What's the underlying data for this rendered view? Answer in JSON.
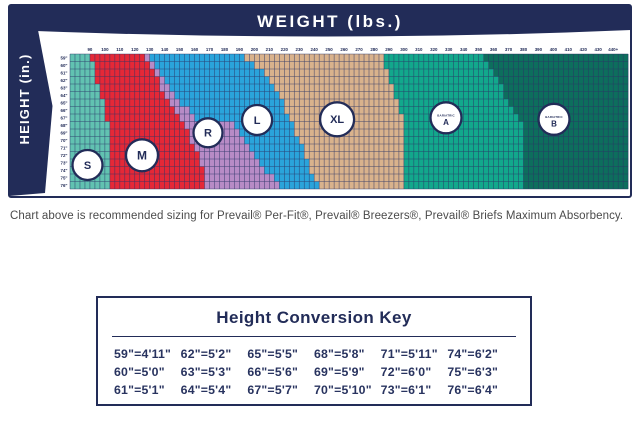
{
  "caption": "Chart above is recommended sizing for Prevail® Per-Fit®, Prevail® Breezers®, Prevail® Briefs Maximum Absorbency.",
  "colors": {
    "navy": "#222c58",
    "grid_line": "#2b3566",
    "card_background": "#ffffff",
    "caption_text": "#4b4b4b"
  },
  "chart_data": {
    "type": "heatmap",
    "title": "Recommended sizing grid by weight and height",
    "x_axis": {
      "label": "WEIGHT (lbs.)",
      "ticks": [
        "90",
        "100",
        "110",
        "120",
        "130",
        "140",
        "150",
        "160",
        "170",
        "180",
        "190",
        "200",
        "210",
        "220",
        "230",
        "240",
        "250",
        "260",
        "270",
        "280",
        "290",
        "300",
        "310",
        "320",
        "330",
        "340",
        "350",
        "360",
        "370",
        "380",
        "390",
        "400",
        "410",
        "420",
        "430",
        "440+"
      ],
      "tick_start_lb": 90,
      "tick_step_lb": 10,
      "min_lb": 76.6667,
      "max_lb": 450,
      "cell_lbs": 3.33333
    },
    "y_axis": {
      "label": "HEIGHT (in.)",
      "ticks": [
        "59\"",
        "60\"",
        "61\"",
        "62\"",
        "63\"",
        "64\"",
        "65\"",
        "66\"",
        "67\"",
        "68\"",
        "69\"",
        "70\"",
        "71\"",
        "72\"",
        "73\"",
        "74\"",
        "75\"",
        "76\""
      ]
    },
    "sizes": [
      {
        "id": "S",
        "label": "S",
        "color": "#61c2b1"
      },
      {
        "id": "M",
        "label": "M",
        "color": "#e52837"
      },
      {
        "id": "R",
        "label": "R",
        "color": "#b78bc6"
      },
      {
        "id": "L",
        "label": "L",
        "color": "#2aa4db"
      },
      {
        "id": "XL",
        "label": "XL",
        "color": "#d9b28c"
      },
      {
        "id": "A",
        "label": "BARIATRIC A",
        "color": "#12a88c"
      },
      {
        "id": "B",
        "label": "BARIATRIC B",
        "color": "#0d6e5d"
      }
    ],
    "rows": [
      {
        "h": "59\"",
        "bounds": {
          "S": 91,
          "M": 126,
          "R": 130,
          "L": 193,
          "XL": 287,
          "A": 353
        }
      },
      {
        "h": "60\"",
        "bounds": {
          "S": 94,
          "M": 129,
          "R": 133,
          "L": 200,
          "XL": 287,
          "A": 356
        }
      },
      {
        "h": "61\"",
        "bounds": {
          "S": 94,
          "M": 132,
          "R": 136,
          "L": 206,
          "XL": 290,
          "A": 359
        }
      },
      {
        "h": "62\"",
        "bounds": {
          "S": 94,
          "M": 135,
          "R": 139,
          "L": 210,
          "XL": 290,
          "A": 362
        }
      },
      {
        "h": "63\"",
        "bounds": {
          "S": 97,
          "M": 138,
          "R": 144,
          "L": 213,
          "XL": 293,
          "A": 365
        }
      },
      {
        "h": "64\"",
        "bounds": {
          "S": 97,
          "M": 141,
          "R": 147,
          "L": 216,
          "XL": 293,
          "A": 368
        }
      },
      {
        "h": "65\"",
        "bounds": {
          "S": 100,
          "M": 144,
          "R": 151,
          "L": 219,
          "XL": 297,
          "A": 371
        }
      },
      {
        "h": "66\"",
        "bounds": {
          "S": 100,
          "M": 147,
          "R": 155,
          "L": 221,
          "XL": 297,
          "A": 374
        }
      },
      {
        "h": "67\"",
        "bounds": {
          "S": 100,
          "M": 150,
          "R": 159,
          "L": 224,
          "XL": 300,
          "A": 377
        }
      },
      {
        "h": "68\"",
        "bounds": {
          "S": 102,
          "M": 153,
          "R": 187,
          "L": 226,
          "XL": 300,
          "A": 380
        }
      },
      {
        "h": "69\"",
        "bounds": {
          "S": 102,
          "M": 156,
          "R": 190,
          "L": 228,
          "XL": 300,
          "A": 381
        }
      },
      {
        "h": "70\"",
        "bounds": {
          "S": 104,
          "M": 158,
          "R": 194,
          "L": 230,
          "XL": 300,
          "A": 381
        }
      },
      {
        "h": "71\"",
        "bounds": {
          "S": 104,
          "M": 160,
          "R": 197,
          "L": 232,
          "XL": 300,
          "A": 381
        }
      },
      {
        "h": "72\"",
        "bounds": {
          "S": 104,
          "M": 162,
          "R": 200,
          "L": 234,
          "XL": 300,
          "A": 381
        }
      },
      {
        "h": "73\"",
        "bounds": {
          "S": 105,
          "M": 164,
          "R": 204,
          "L": 236,
          "XL": 300,
          "A": 381
        }
      },
      {
        "h": "74\"",
        "bounds": {
          "S": 105,
          "M": 165,
          "R": 208,
          "L": 238,
          "XL": 300,
          "A": 381
        }
      },
      {
        "h": "75\"",
        "bounds": {
          "S": 105,
          "M": 166,
          "R": 214,
          "L": 240,
          "XL": 300,
          "A": 381
        }
      },
      {
        "h": "76\"",
        "bounds": {
          "S": 105,
          "M": 166,
          "R": 218,
          "L": 242,
          "XL": 300,
          "A": 381
        }
      }
    ],
    "size_badges": [
      {
        "id": "S",
        "lines": [
          "S"
        ],
        "lb": 88.4,
        "row": 14.8,
        "r": 15,
        "font": 11
      },
      {
        "id": "M",
        "lines": [
          "M"
        ],
        "lb": 124.8,
        "row": 13.5,
        "r": 16,
        "font": 12
      },
      {
        "id": "R",
        "lines": [
          "R"
        ],
        "lb": 169,
        "row": 10.5,
        "r": 14.5,
        "font": 11
      },
      {
        "id": "L",
        "lines": [
          "L"
        ],
        "lb": 201.8,
        "row": 8.8,
        "r": 15,
        "font": 11
      },
      {
        "id": "XL",
        "lines": [
          "XL"
        ],
        "lb": 255.3,
        "row": 8.7,
        "r": 17,
        "font": 11
      },
      {
        "id": "A",
        "lines": [
          "BARIATRIC",
          "A"
        ],
        "lb": 328.2,
        "row": 8.5,
        "r": 15.5,
        "font": 8
      },
      {
        "id": "B",
        "lines": [
          "BARIATRIC",
          "B"
        ],
        "lb": 400.4,
        "row": 8.7,
        "r": 15.5,
        "font": 8
      }
    ],
    "legend_position": "in-region badges",
    "grid": true
  },
  "key": {
    "title": "Height Conversion Key",
    "columns": [
      [
        "59\"=4'11\"",
        "60\"=5'0\"",
        "61\"=5'1\""
      ],
      [
        "62\"=5'2\"",
        "63\"=5'3\"",
        "64\"=5'4\""
      ],
      [
        "65\"=5'5\"",
        "66\"=5'6\"",
        "67\"=5'7\""
      ],
      [
        "68\"=5'8\"",
        "69\"=5'9\"",
        "70\"=5'10\""
      ],
      [
        "71\"=5'11\"",
        "72\"=6'0\"",
        "73\"=6'1\""
      ],
      [
        "74\"=6'2\"",
        "75\"=6'3\"",
        "76\"=6'4\""
      ]
    ]
  }
}
